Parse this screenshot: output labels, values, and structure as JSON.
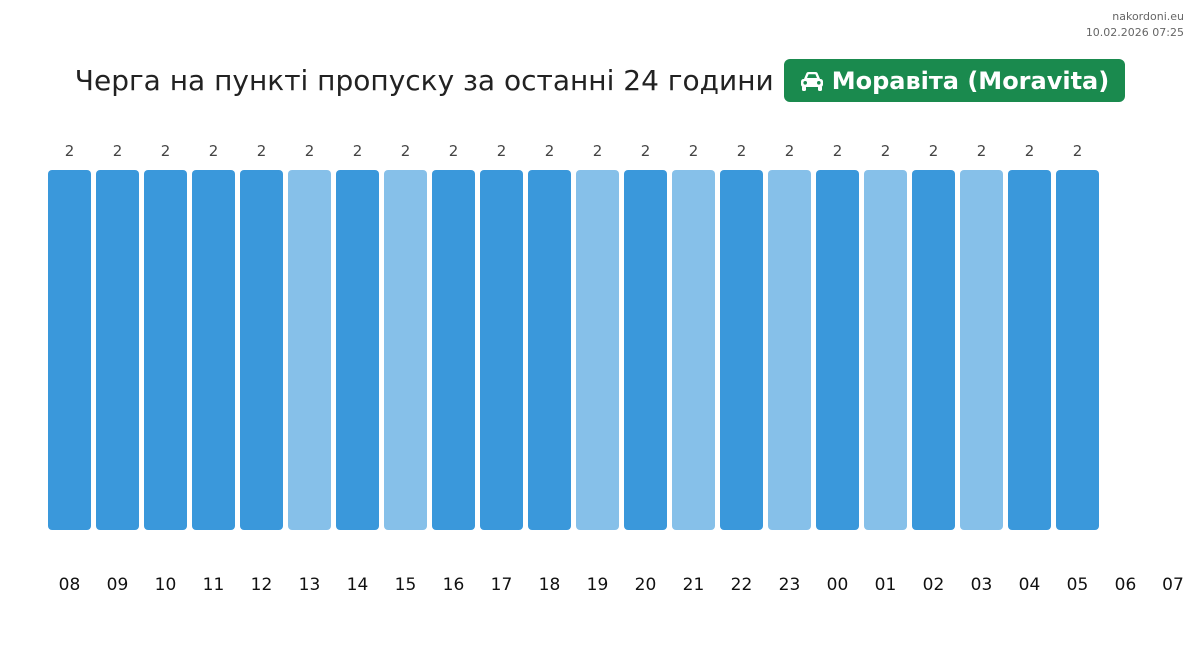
{
  "site": {
    "name": "nakordoni.eu",
    "datetime": "10.02.2026 07:25"
  },
  "header": {
    "title": "Черга на пункті пропуску за останні 24 години",
    "crossing": {
      "icon": "car-icon",
      "name": "Моравіта (Moravita)",
      "color": "#1a8a4e"
    }
  },
  "chart_data": {
    "type": "bar",
    "categories": [
      "08",
      "09",
      "10",
      "11",
      "12",
      "13",
      "14",
      "15",
      "16",
      "17",
      "18",
      "19",
      "20",
      "21",
      "22",
      "23",
      "00",
      "01",
      "02",
      "03",
      "04",
      "05",
      "06",
      "07"
    ],
    "values": [
      2,
      2,
      2,
      2,
      2,
      2,
      2,
      2,
      2,
      2,
      2,
      2,
      2,
      2,
      2,
      2,
      2,
      2,
      2,
      2,
      2,
      2,
      null,
      null
    ],
    "ylim": [
      0,
      2
    ],
    "bar_shades": [
      "dark",
      "dark",
      "dark",
      "dark",
      "dark",
      "light",
      "dark",
      "light",
      "dark",
      "dark",
      "dark",
      "light",
      "dark",
      "light",
      "dark",
      "light",
      "dark",
      "light",
      "dark",
      "light",
      "dark",
      "dark"
    ],
    "colors": {
      "dark": "#3a98db",
      "light": "#86c0e9"
    },
    "grid": false,
    "legend": "none"
  }
}
